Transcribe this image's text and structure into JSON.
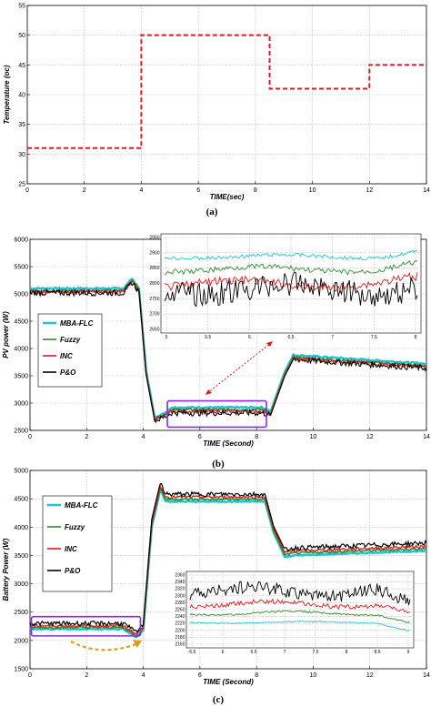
{
  "chart_data": [
    {
      "panel": "a",
      "type": "line",
      "caption": "(a)",
      "xlabel": "TIME(sec)",
      "ylabel": "Temperature (oc)",
      "xlim": [
        0,
        14
      ],
      "ylim": [
        25,
        55
      ],
      "xticks": [
        0,
        2,
        4,
        6,
        8,
        10,
        12,
        14
      ],
      "yticks": [
        25,
        30,
        35,
        40,
        45,
        50,
        55
      ],
      "grid": true,
      "series": [
        {
          "color": "#e0191b",
          "dash": true,
          "x": [
            0,
            4,
            4,
            8.5,
            8.5,
            12,
            12,
            14
          ],
          "y": [
            31,
            31,
            50,
            50,
            41,
            41,
            45,
            45
          ]
        }
      ]
    },
    {
      "panel": "b",
      "type": "line",
      "caption": "(b)",
      "xlabel": "TIME (Second)",
      "ylabel": "PV power (W)",
      "xlim": [
        0,
        14
      ],
      "ylim": [
        2500,
        6000
      ],
      "xticks": [
        0,
        2,
        4,
        6,
        8,
        10,
        12,
        14
      ],
      "yticks": [
        2500,
        3000,
        3500,
        4000,
        4500,
        5000,
        5500,
        6000
      ],
      "grid": true,
      "legend_position": "left",
      "series": [
        {
          "name": "MBA-FLC",
          "color": "#22c3cf",
          "x": [
            0,
            3.3,
            3.6,
            3.85,
            4.1,
            4.4,
            4.7,
            5,
            8.2,
            8.5,
            9,
            9.3,
            14
          ],
          "y": [
            5100,
            5100,
            5280,
            5100,
            3600,
            2750,
            2800,
            2920,
            2920,
            2850,
            3580,
            3880,
            3720
          ]
        },
        {
          "name": "Fuzzy",
          "color": "#2e8b2e",
          "x": [
            0,
            3.3,
            3.6,
            3.85,
            4.1,
            4.4,
            4.7,
            5,
            8.2,
            8.5,
            9,
            9.3,
            14
          ],
          "y": [
            5060,
            5060,
            5250,
            5080,
            3560,
            2720,
            2770,
            2880,
            2880,
            2820,
            3540,
            3840,
            3680
          ]
        },
        {
          "name": "INC",
          "color": "#e0191b",
          "x": [
            0,
            3.3,
            3.6,
            3.85,
            4.1,
            4.4,
            4.7,
            5,
            8.2,
            8.5,
            9,
            9.3,
            14
          ],
          "y": [
            5040,
            5040,
            5230,
            5060,
            3540,
            2700,
            2750,
            2850,
            2850,
            2800,
            3520,
            3820,
            3660
          ]
        },
        {
          "name": "P&O",
          "color": "#000000",
          "x": [
            0,
            3.3,
            3.6,
            3.85,
            4.1,
            4.4,
            4.7,
            5,
            8.2,
            8.5,
            9,
            9.3,
            14
          ],
          "y": [
            5020,
            5020,
            5210,
            5040,
            3520,
            2680,
            2730,
            2820,
            2820,
            2780,
            3500,
            3800,
            3640
          ]
        }
      ],
      "inset": {
        "xticks": [
          "5",
          "5.5",
          "6",
          "6.5",
          "7",
          "7.5",
          "8"
        ],
        "yticks": [
          "2650",
          "2700",
          "2750",
          "2800",
          "2850",
          "2900",
          "2950"
        ]
      }
    },
    {
      "panel": "c",
      "type": "line",
      "caption": "(c)",
      "xlabel": "TIME (Second)",
      "ylabel": "Battery Power (W)",
      "xlim": [
        0,
        14
      ],
      "ylim": [
        1500,
        5000
      ],
      "xticks": [
        0,
        2,
        4,
        6,
        8,
        10,
        12,
        14
      ],
      "yticks": [
        1500,
        2000,
        2500,
        3000,
        3500,
        4000,
        4500,
        5000
      ],
      "grid": true,
      "legend_position": "left",
      "series": [
        {
          "name": "MBA-FLC",
          "color": "#22c3cf",
          "x": [
            0,
            3.3,
            3.75,
            4.0,
            4.3,
            4.6,
            4.8,
            8.3,
            8.6,
            9.0,
            9.3,
            14
          ],
          "y": [
            2200,
            2200,
            2050,
            2180,
            4000,
            4650,
            4450,
            4450,
            3900,
            3470,
            3500,
            3580
          ]
        },
        {
          "name": "Fuzzy",
          "color": "#2e8b2e",
          "x": [
            0,
            3.3,
            3.75,
            4.0,
            4.3,
            4.6,
            4.8,
            8.3,
            8.6,
            9.0,
            9.3,
            14
          ],
          "y": [
            2230,
            2230,
            2080,
            2210,
            4040,
            4690,
            4490,
            4490,
            3940,
            3510,
            3540,
            3620
          ]
        },
        {
          "name": "INC",
          "color": "#e0191b",
          "x": [
            0,
            3.3,
            3.75,
            4.0,
            4.3,
            4.6,
            4.8,
            8.3,
            8.6,
            9.0,
            9.3,
            14
          ],
          "y": [
            2260,
            2260,
            2110,
            2240,
            4080,
            4720,
            4530,
            4530,
            3980,
            3550,
            3580,
            3660
          ]
        },
        {
          "name": "P&O",
          "color": "#000000",
          "x": [
            0,
            3.3,
            3.75,
            4.0,
            4.3,
            4.6,
            4.8,
            8.3,
            8.6,
            9.0,
            9.3,
            14
          ],
          "y": [
            2300,
            2300,
            2140,
            2280,
            4140,
            4780,
            4580,
            4580,
            4020,
            3600,
            3630,
            3720
          ]
        }
      ],
      "inset": {
        "xticks": [
          "-5.5",
          "6",
          "6.5",
          "7",
          "7.5",
          "8",
          "8.5",
          "9"
        ],
        "yticks": [
          "2160",
          "2180",
          "2200",
          "2220",
          "2240",
          "2260",
          "2280",
          "2300",
          "2320",
          "2340",
          "2360"
        ]
      }
    }
  ]
}
